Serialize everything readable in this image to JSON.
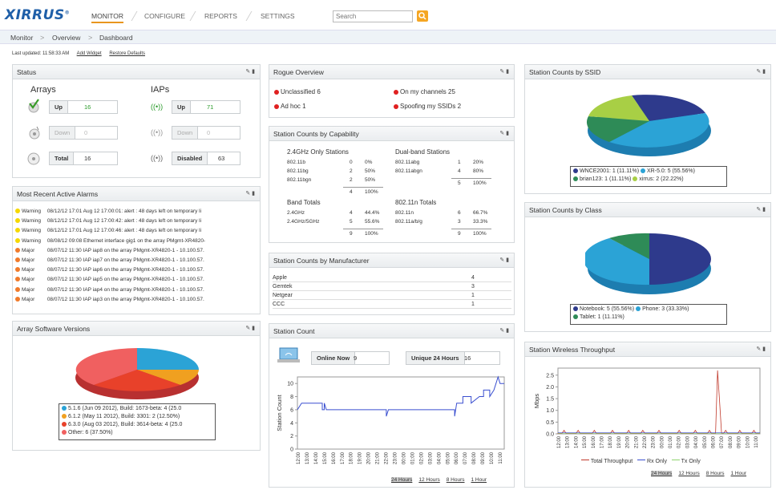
{
  "nav": {
    "logo": "XIRRUS",
    "items": [
      {
        "label": "MONITOR"
      },
      {
        "label": "CONFIGURE"
      },
      {
        "label": "REPORTS"
      },
      {
        "label": "SETTINGS"
      }
    ],
    "search_placeholder": "Search"
  },
  "breadcrumb": [
    "Monitor",
    "Overview",
    "Dashboard"
  ],
  "toolbar": {
    "last_updated": "Last updated: 11:58:33 AM",
    "add_widget": "Add Widget",
    "restore_defaults": "Restore Defaults"
  },
  "status": {
    "title": "Status",
    "arrays_label": "Arrays",
    "iaps_label": "IAPs",
    "arrays": [
      {
        "label": "Up",
        "value": "16"
      },
      {
        "label": "Down",
        "value": "0"
      },
      {
        "label": "Total",
        "value": "16"
      }
    ],
    "iaps": [
      {
        "label": "Up",
        "value": "71"
      },
      {
        "label": "Down",
        "value": "0"
      },
      {
        "label": "Disabled",
        "value": "63"
      }
    ]
  },
  "alarms": {
    "title": "Most Recent Active Alarms",
    "rows": [
      {
        "sev": "Warning",
        "text": "08/12/12 17:01  Aug 12 17:00:01: alert : 48 days left on temporary li",
        "color": "#f5d800"
      },
      {
        "sev": "Warning",
        "text": "08/12/12 17:01  Aug 12 17:00:42: alert : 48 days left on temporary li",
        "color": "#f5d800"
      },
      {
        "sev": "Warning",
        "text": "08/12/12 17:01  Aug 12 17:00:46: alert : 48 days left on temporary li",
        "color": "#f5d800"
      },
      {
        "sev": "Warning",
        "text": "08/08/12 09:08  Ethernet interface gig1 on the array PMgmt-XR4820-",
        "color": "#f5d800"
      },
      {
        "sev": "Major",
        "text": "08/07/12 11:30  IAP iap8 on the array PMgmt-XR4820-1 - 10.100.57.",
        "color": "#f07a2a"
      },
      {
        "sev": "Major",
        "text": "08/07/12 11:30  IAP iap7 on the array PMgmt-XR4820-1 - 10.100.57.",
        "color": "#f07a2a"
      },
      {
        "sev": "Major",
        "text": "08/07/12 11:30  IAP iap6 on the array PMgmt-XR4820-1 - 10.100.57.",
        "color": "#f07a2a"
      },
      {
        "sev": "Major",
        "text": "08/07/12 11:30  IAP iap5 on the array PMgmt-XR4820-1 - 10.100.57.",
        "color": "#f07a2a"
      },
      {
        "sev": "Major",
        "text": "08/07/12 11:30  IAP iap4 on the array PMgmt-XR4820-1 - 10.100.57.",
        "color": "#f07a2a"
      },
      {
        "sev": "Major",
        "text": "08/07/12 11:30  IAP iap3 on the array PMgmt-XR4820-1 - 10.100.57.",
        "color": "#f07a2a"
      }
    ]
  },
  "software": {
    "title": "Array Software Versions",
    "legend": [
      {
        "label": "5.1.6 (Jun 09 2012), Build: 1673-beta: 4 (25.0",
        "color": "#2ba3d6"
      },
      {
        "label": "6.1.2 (May 11 2012), Build: 3301: 2 (12.50%)",
        "color": "#f0a020"
      },
      {
        "label": "6.3.0 (Aug 03 2012), Build: 3614-beta: 4 (25.0",
        "color": "#e8412a"
      },
      {
        "label": "Other: 6 (37.50%)",
        "color": "#f06060"
      }
    ]
  },
  "rogue": {
    "title": "Rogue Overview",
    "items": [
      "Unclassified 6",
      "On my channels 25",
      "Ad hoc 1",
      "Spoofing my SSIDs 2"
    ]
  },
  "capability": {
    "title": "Station Counts by Capability",
    "g24_title": "2.4GHz Only Stations",
    "g24": [
      [
        "802.11b",
        "0",
        "0%"
      ],
      [
        "802.11bg",
        "2",
        "50%"
      ],
      [
        "802.11bgn",
        "2",
        "50%"
      ]
    ],
    "g24_total": [
      "4",
      "100%"
    ],
    "dual_title": "Dual-band Stations",
    "dual": [
      [
        "802.11abg",
        "1",
        "20%"
      ],
      [
        "802.11abgn",
        "4",
        "80%"
      ]
    ],
    "dual_total": [
      "5",
      "100%"
    ],
    "band_title": "Band Totals",
    "band": [
      [
        "2.4GHz",
        "4",
        "44.4%"
      ],
      [
        "2.4GHz/5GHz",
        "5",
        "55.6%"
      ]
    ],
    "band_total": [
      "9",
      "100%"
    ],
    "n_title": "802.11n Totals",
    "n": [
      [
        "802.11n",
        "6",
        "66.7%"
      ],
      [
        "802.11a/b/g",
        "3",
        "33.3%"
      ]
    ],
    "n_total": [
      "9",
      "100%"
    ]
  },
  "manufacturer": {
    "title": "Station Counts by Manufacturer",
    "rows": [
      [
        "Apple",
        "4"
      ],
      [
        "Gemtek",
        "3"
      ],
      [
        "Netgear",
        "1"
      ],
      [
        "CCC",
        "1"
      ]
    ]
  },
  "stationcount": {
    "title": "Station Count",
    "online_label": "Online Now",
    "online_value": "9",
    "unique_label": "Unique 24 Hours",
    "unique_value": "16",
    "ylabel": "Station Count",
    "yticks": [
      "10",
      "8",
      "6",
      "4",
      "2",
      "0"
    ],
    "xticks": [
      "12:00",
      "13:00",
      "14:00",
      "15:00",
      "16:00",
      "17:00",
      "18:00",
      "19:00",
      "20:00",
      "21:00",
      "22:00",
      "23:00",
      "00:00",
      "01:00",
      "02:00",
      "03:00",
      "04:00",
      "05:00",
      "06:00",
      "07:00",
      "08:00",
      "09:00",
      "10:00",
      "11:00"
    ],
    "ranges": [
      "24 Hours",
      "12 Hours",
      "8 Hours",
      "1 Hour"
    ]
  },
  "ssid": {
    "title": "Station Counts by SSID",
    "legend": [
      {
        "label": "WNCE2001: 1 (11.11%)",
        "color": "#2e3a8c"
      },
      {
        "label": "XR-5.0: 5 (55.56%)",
        "color": "#2ba3d6"
      },
      {
        "label": "brian123: 1 (11.11%)",
        "color": "#2e8b57"
      },
      {
        "label": "xirrus: 2 (22.22%)",
        "color": "#a8cf45"
      }
    ]
  },
  "class": {
    "title": "Station Counts by Class",
    "legend": [
      {
        "label": "Notebook: 5 (55.56%)",
        "color": "#2e3a8c"
      },
      {
        "label": "Phone: 3 (33.33%)",
        "color": "#2ba3d6"
      },
      {
        "label": "Tablet: 1 (11.11%)",
        "color": "#2e8b57"
      }
    ]
  },
  "throughput": {
    "title": "Station Wireless Throughput",
    "ylabel": "Mbps",
    "yticks": [
      "2.5",
      "2.0",
      "1.5",
      "1.0",
      "0.5",
      "0.0"
    ],
    "xticks": [
      "12:00",
      "13:00",
      "14:00",
      "15:00",
      "16:00",
      "17:00",
      "18:00",
      "19:00",
      "20:00",
      "21:00",
      "22:00",
      "23:00",
      "00:00",
      "01:00",
      "02:00",
      "03:00",
      "04:00",
      "05:00",
      "06:00",
      "07:00",
      "08:00",
      "09:00",
      "10:00",
      "11:00"
    ],
    "legend": [
      {
        "label": "Total Throughput",
        "color": "#c0392b"
      },
      {
        "label": "Rx Only",
        "color": "#3a4fd0"
      },
      {
        "label": "Tx Only",
        "color": "#8fd36f"
      }
    ],
    "ranges": [
      "24 Hours",
      "12 Hours",
      "8 Hours",
      "1 Hour"
    ]
  }
}
